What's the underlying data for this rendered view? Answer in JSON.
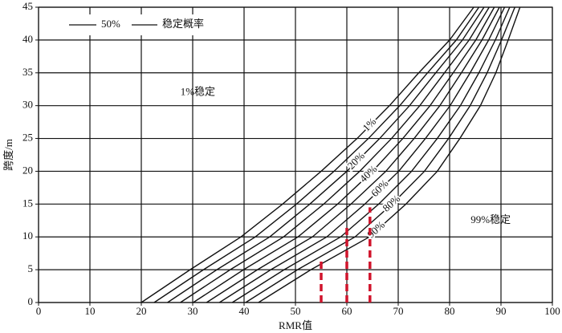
{
  "chart_data": {
    "type": "line",
    "xlabel": "RMR值",
    "ylabel": "跨度/m",
    "xlim": [
      0,
      100
    ],
    "ylim": [
      0,
      45
    ],
    "xticks": [
      0,
      10,
      20,
      30,
      40,
      50,
      60,
      70,
      80,
      90,
      100
    ],
    "yticks": [
      0,
      5,
      10,
      15,
      20,
      25,
      30,
      35,
      40,
      45
    ],
    "grid": true,
    "line_color": "#111",
    "legend_labels": [
      "50%",
      "稳定概率"
    ],
    "annotations": [
      {
        "text": "1%稳定",
        "x": 31,
        "y": 32
      },
      {
        "text": "99%稳定",
        "x": 88,
        "y": 12.5
      }
    ],
    "series": [
      {
        "name": "1%",
        "x": [
          20,
          29.5,
          39.4,
          47.5,
          55,
          62,
          68.3,
          74,
          80,
          84.7
        ],
        "values": [
          0,
          5,
          10,
          15,
          20,
          25,
          30,
          35,
          40,
          45
        ]
      },
      {
        "x": [
          22.5,
          32.1,
          42.2,
          50.2,
          57.5,
          64.2,
          70.3,
          75.7,
          81.3,
          85.7
        ],
        "values": [
          0,
          5,
          10,
          15,
          20,
          25,
          30,
          35,
          40,
          45
        ]
      },
      {
        "name": "20%",
        "x": [
          25.1,
          34.7,
          45,
          52.8,
          60,
          66.4,
          72.2,
          77.3,
          82.5,
          86.7
        ],
        "values": [
          0,
          5,
          10,
          15,
          20,
          25,
          30,
          35,
          40,
          45
        ]
      },
      {
        "x": [
          27.6,
          37.3,
          47.7,
          55.5,
          62.5,
          68.7,
          74.2,
          79,
          83.8,
          87.7
        ],
        "values": [
          0,
          5,
          10,
          15,
          20,
          25,
          30,
          35,
          40,
          45
        ]
      },
      {
        "name": "40%",
        "x": [
          30.1,
          39.9,
          50.5,
          58.2,
          65,
          70.9,
          76.2,
          80.7,
          85.1,
          88.7
        ],
        "values": [
          0,
          5,
          10,
          15,
          20,
          25,
          30,
          35,
          40,
          45
        ]
      },
      {
        "x": [
          32.7,
          42.6,
          53.3,
          60.8,
          67.6,
          73.1,
          78.1,
          82.3,
          86.3,
          89.7
        ],
        "values": [
          0,
          5,
          10,
          15,
          20,
          25,
          30,
          35,
          40,
          45
        ]
      },
      {
        "name": "60%",
        "x": [
          35.2,
          45.2,
          56.1,
          63.5,
          70.1,
          75.3,
          80.1,
          84,
          87.6,
          90.7
        ],
        "values": [
          0,
          5,
          10,
          15,
          20,
          25,
          30,
          35,
          40,
          45
        ]
      },
      {
        "x": [
          37.7,
          47.8,
          58.8,
          66.2,
          72.6,
          77.6,
          82.1,
          85.7,
          88.9,
          91.7
        ],
        "values": [
          0,
          5,
          10,
          15,
          20,
          25,
          30,
          35,
          40,
          45
        ]
      },
      {
        "name": "80%",
        "x": [
          40.3,
          50.4,
          61.6,
          68.8,
          75.1,
          79.8,
          84,
          87.3,
          90.1,
          92.7
        ],
        "values": [
          0,
          5,
          10,
          15,
          20,
          25,
          30,
          35,
          40,
          45
        ]
      },
      {
        "name": "90%",
        "x": [
          42.8,
          53,
          64.4,
          71.5,
          77.6,
          82,
          86,
          89,
          91.4,
          93.7
        ],
        "values": [
          0,
          5,
          10,
          15,
          20,
          25,
          30,
          35,
          40,
          45
        ]
      }
    ],
    "markers": {
      "color": "#d0142c",
      "x": [
        55,
        60,
        64.5
      ],
      "values": [
        6.5,
        11.5,
        14.5
      ]
    }
  }
}
